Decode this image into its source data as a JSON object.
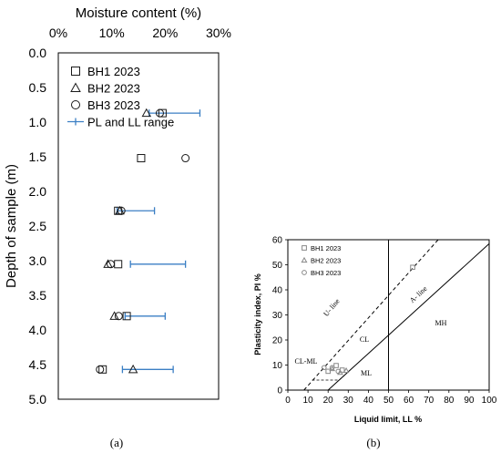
{
  "chart_data": [
    {
      "type": "scatter",
      "panel_label": "(a)",
      "xlabel": "Moisture content (%)",
      "ylabel": "Depth of sample (m)",
      "xlim": [
        0,
        30
      ],
      "ylim": [
        0.0,
        5.0
      ],
      "y_inverted": true,
      "x_axis_position": "top",
      "x_ticks": [
        0,
        10,
        20,
        30
      ],
      "x_tick_labels": [
        "0%",
        "10%",
        "20%",
        "30%"
      ],
      "y_ticks": [
        0.0,
        0.5,
        1.0,
        1.5,
        2.0,
        2.5,
        3.0,
        3.5,
        4.0,
        4.5,
        5.0
      ],
      "y_tick_labels": [
        "0.0",
        "0.5",
        "1.0",
        "1.5",
        "2.0",
        "2.5",
        "3.0",
        "3.5",
        "4.0",
        "4.5",
        "5.0"
      ],
      "grid": false,
      "legend_position": "top-left (inside)",
      "series": [
        {
          "name": "BH1 2023",
          "marker": "square",
          "points": [
            [
              19.5,
              0.87
            ],
            [
              15.5,
              1.52
            ],
            [
              11.2,
              2.28
            ],
            [
              11.2,
              3.05
            ],
            [
              12.8,
              3.8
            ],
            [
              8.3,
              4.57
            ]
          ]
        },
        {
          "name": "BH2 2023",
          "marker": "triangle",
          "points": [
            [
              16.5,
              0.87
            ],
            [
              11.5,
              2.28
            ],
            [
              9.3,
              3.05
            ],
            [
              10.5,
              3.8
            ],
            [
              14.0,
              4.57
            ]
          ]
        },
        {
          "name": "BH3 2023",
          "marker": "circle",
          "points": [
            [
              19.0,
              0.87
            ],
            [
              23.8,
              1.52
            ],
            [
              11.8,
              2.28
            ],
            [
              9.8,
              3.05
            ],
            [
              11.3,
              3.8
            ],
            [
              7.8,
              4.57
            ]
          ]
        },
        {
          "name": "PL and LL range",
          "marker": "range",
          "ranges": [
            [
              17.0,
              26.5,
              0.87
            ],
            [
              11.0,
              18.0,
              2.28
            ],
            [
              13.5,
              23.8,
              3.05
            ],
            [
              12.5,
              20.0,
              3.8
            ],
            [
              12.0,
              21.5,
              4.57
            ]
          ]
        }
      ]
    },
    {
      "type": "scatter",
      "panel_label": "(b)",
      "xlabel": "Liquid limit, LL %",
      "ylabel": "Plasticity index, PI %",
      "xlim": [
        0,
        100
      ],
      "ylim": [
        0,
        60
      ],
      "x_ticks": [
        0,
        10,
        20,
        30,
        40,
        50,
        60,
        70,
        80,
        90,
        100
      ],
      "x_tick_labels": [
        "0",
        "10",
        "20",
        "30",
        "40",
        "50",
        "60",
        "70",
        "80",
        "90",
        "100"
      ],
      "y_ticks": [
        0,
        10,
        20,
        30,
        40,
        50,
        60
      ],
      "y_tick_labels": [
        "0",
        "10",
        "20",
        "30",
        "40",
        "50",
        "60"
      ],
      "grid": false,
      "legend_position": "top-left (inside)",
      "region_labels": [
        "CL-ML",
        "CL",
        "ML",
        "MH"
      ],
      "line_labels": [
        "U- line",
        "A- line"
      ],
      "series": [
        {
          "name": "BH1 2023",
          "marker": "square",
          "points": [
            [
              24,
              9.8
            ],
            [
              27,
              8
            ],
            [
              20,
              7.5
            ],
            [
              62,
              49
            ]
          ]
        },
        {
          "name": "BH2 2023",
          "marker": "triangle",
          "points": [
            [
              22,
              8.5
            ],
            [
              26,
              7
            ],
            [
              29,
              7.8
            ]
          ]
        },
        {
          "name": "BH3 2023",
          "marker": "circle",
          "points": [
            [
              22,
              9
            ],
            [
              25,
              7.5
            ],
            [
              18,
              9
            ]
          ]
        }
      ]
    }
  ],
  "colors": {
    "range_line": "#3b7fc4",
    "marker_a": "#1a1a1a",
    "marker_b": "#888888",
    "frame": "#000000"
  }
}
